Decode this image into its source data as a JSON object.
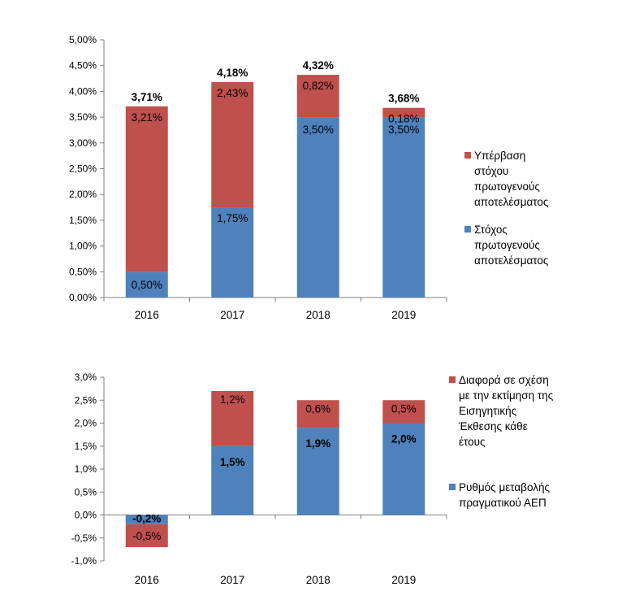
{
  "chart_data": [
    {
      "type": "bar",
      "stacked": true,
      "title": "",
      "xlabel": "",
      "ylabel": "",
      "categories": [
        "2016",
        "2017",
        "2018",
        "2019"
      ],
      "ylim": [
        0,
        5
      ],
      "y_ticks": [
        "0,00%",
        "0,50%",
        "1,00%",
        "1,50%",
        "2,00%",
        "2,50%",
        "3,00%",
        "3,50%",
        "4,00%",
        "4,50%",
        "5,00%"
      ],
      "grid": false,
      "legend_position": "right",
      "series": [
        {
          "name": "Στόχος πρωτογενούς αποτελέσματος",
          "name_lines": [
            "Στόχος",
            "πρωτογενούς",
            "αποτελέσματος"
          ],
          "color": "#4F81BD",
          "values": [
            0.5,
            1.75,
            3.5,
            3.5
          ],
          "labels": [
            "0,50%",
            "1,75%",
            "3,50%",
            "3,50%"
          ],
          "label_bold": false
        },
        {
          "name": "Υπέρβαση στόχου πρωτογενούς αποτελέσματος",
          "name_lines": [
            "Υπέρβαση",
            "στόχου",
            "πρωτογενούς",
            "αποτελέσματος"
          ],
          "color": "#C0504D",
          "values": [
            3.21,
            2.43,
            0.82,
            0.18
          ],
          "labels": [
            "3,21%",
            "2,43%",
            "0,82%",
            "0,18%"
          ],
          "label_bold": false
        }
      ],
      "totals": [
        3.71,
        4.18,
        4.32,
        3.68
      ],
      "total_labels": [
        "3,71%",
        "4,18%",
        "4,32%",
        "3,68%"
      ]
    },
    {
      "type": "bar",
      "stacked": true,
      "title": "",
      "xlabel": "",
      "ylabel": "",
      "categories": [
        "2016",
        "2017",
        "2018",
        "2019"
      ],
      "ylim": [
        -1,
        3
      ],
      "y_ticks": [
        "-1,0%",
        "-0,5%",
        "0,0%",
        "0,5%",
        "1,0%",
        "1,5%",
        "2,0%",
        "2,5%",
        "3,0%"
      ],
      "grid": false,
      "legend_position": "right",
      "series": [
        {
          "name": "Ρυθμός μεταβολής πραγματικού ΑΕΠ",
          "name_lines": [
            "Ρυθμός μεταβολής",
            "πραγματικού ΑΕΠ"
          ],
          "color": "#4F81BD",
          "values": [
            -0.2,
            1.5,
            1.9,
            2.0
          ],
          "labels": [
            "-0,2%",
            "1,5%",
            "1,9%",
            "2,0%"
          ],
          "label_bold": true
        },
        {
          "name": "Διαφορά σε σχέση με την εκτίμηση της Εισηγητικής Έκθεσης κάθε έτους",
          "name_lines": [
            "Διαφορά σε σχέση",
            "με την εκτίμηση της",
            "Εισηγητικής",
            "Έκθεσης κάθε",
            "έτους"
          ],
          "color": "#C0504D",
          "values": [
            -0.5,
            1.2,
            0.6,
            0.5
          ],
          "labels": [
            "-0,5%",
            "1,2%",
            "0,6%",
            "0,5%"
          ],
          "label_bold": false
        }
      ]
    }
  ]
}
